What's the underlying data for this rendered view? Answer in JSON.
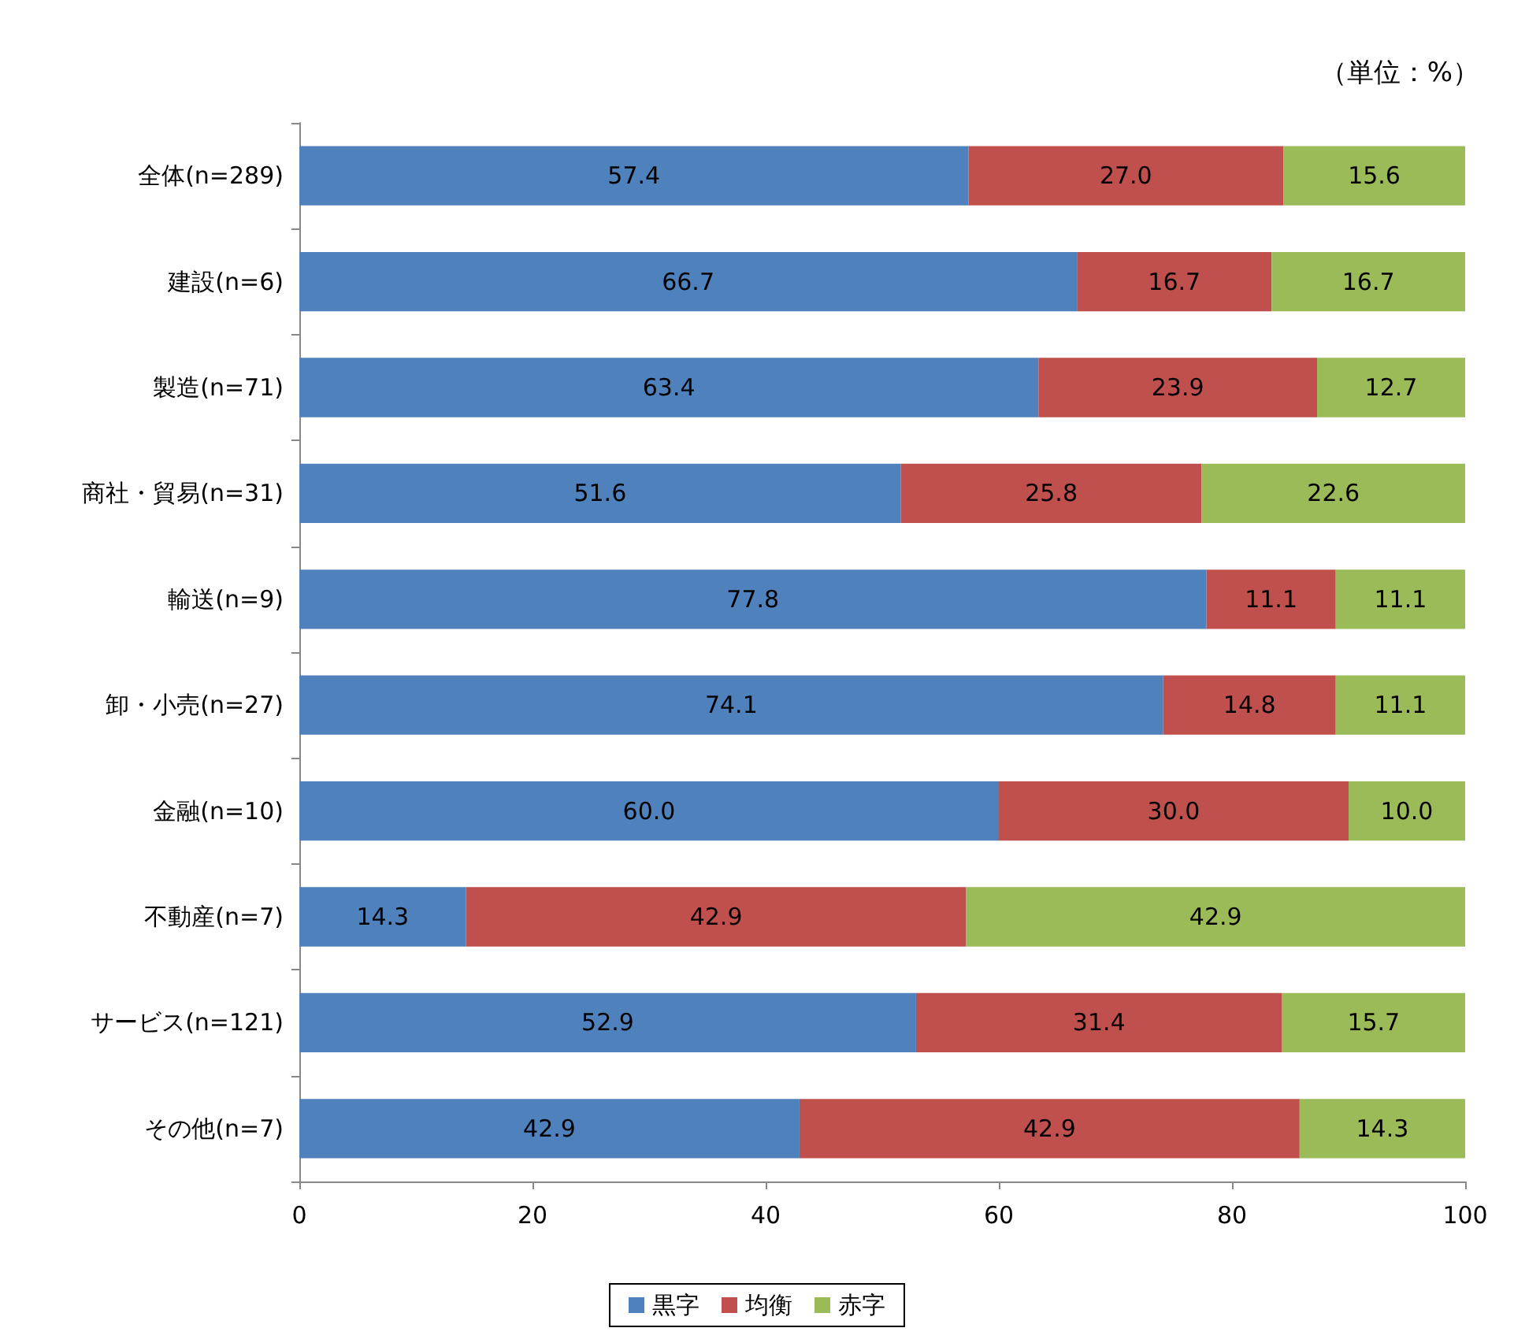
{
  "chart_data": {
    "type": "bar",
    "orientation": "horizontal",
    "stacked": true,
    "categories": [
      "全体(n=289)",
      "建設(n=6)",
      "製造(n=71)",
      "商社・貿易(n=31)",
      "輸送(n=9)",
      "卸・小売(n=27)",
      "金融(n=10)",
      "不動産(n=7)",
      "サービス(n=121)",
      "その他(n=7)"
    ],
    "series": [
      {
        "name": "黒字",
        "color": "#4f81bd",
        "values": [
          57.4,
          66.7,
          63.4,
          51.6,
          77.8,
          74.1,
          60.0,
          14.3,
          52.9,
          42.9
        ],
        "value_labels": [
          "57.4",
          "66.7",
          "63.4",
          "51.6",
          "77.8",
          "74.1",
          "60.0",
          "14.3",
          "52.9",
          "42.9"
        ]
      },
      {
        "name": "均衡",
        "color": "#c0504d",
        "values": [
          27.0,
          16.7,
          23.9,
          25.8,
          11.1,
          14.8,
          30.0,
          42.9,
          31.4,
          42.9
        ],
        "value_labels": [
          "27.0",
          "16.7",
          "23.9",
          "25.8",
          "11.1",
          "14.8",
          "30.0",
          "42.9",
          "31.4",
          "42.9"
        ]
      },
      {
        "name": "赤字",
        "color": "#9bbb59",
        "values": [
          15.6,
          16.7,
          12.7,
          22.6,
          11.1,
          11.1,
          10.0,
          42.9,
          15.7,
          14.3
        ],
        "value_labels": [
          "15.6",
          "16.7",
          "12.7",
          "22.6",
          "11.1",
          "11.1",
          "10.0",
          "42.9",
          "15.7",
          "14.3"
        ]
      }
    ],
    "xlim": [
      0,
      100
    ],
    "xticks": [
      0,
      20,
      40,
      60,
      80,
      100
    ],
    "grid": false,
    "legend": "bottom",
    "annotations": [
      "（単位：%）"
    ]
  }
}
